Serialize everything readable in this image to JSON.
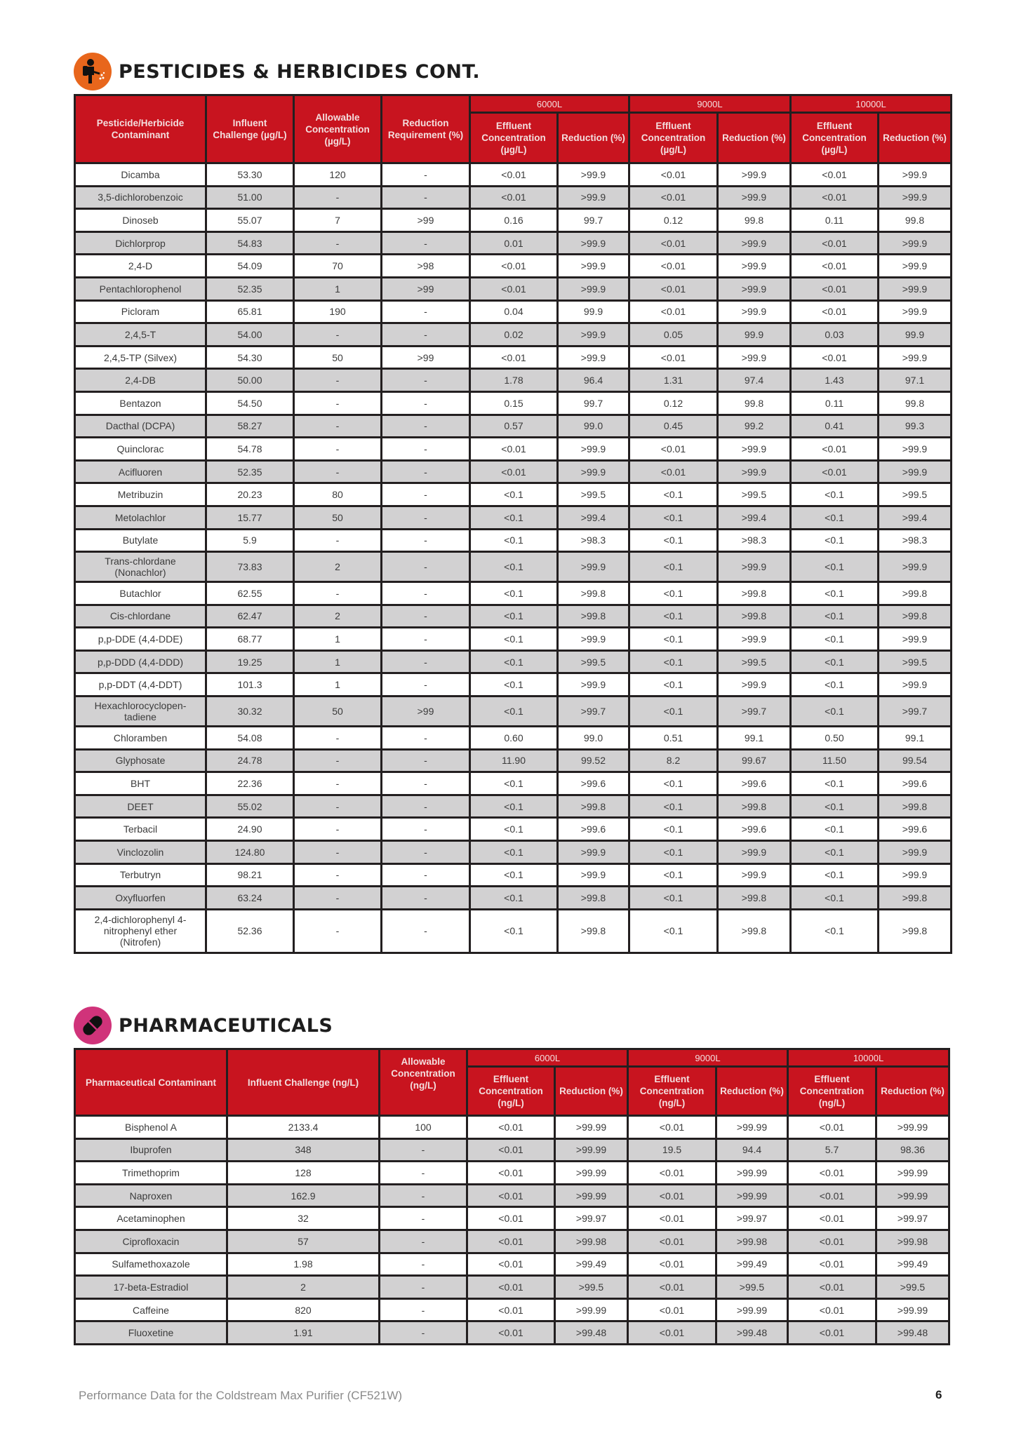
{
  "pesticides": {
    "title": "PESTICIDES & HERBICIDES CONT.",
    "icon": "sprayer-person-icon",
    "icon_color": "#e8661c",
    "header_color": "#c8141f",
    "headers": {
      "contaminant": "Pesticide/Herbicide Contaminant",
      "influent": "Influent Challenge (µg/L)",
      "allowable": "Allowable Concentration (µg/L)",
      "requirement": "Reduction Requirement (%)",
      "groups": [
        "6000L",
        "9000L",
        "10000L"
      ],
      "effluent": "Effluent Concentration (µg/L)",
      "reduction": "Reduction (%)"
    },
    "rows": [
      [
        "Dicamba",
        "53.30",
        "120",
        "-",
        "<0.01",
        ">99.9",
        "<0.01",
        ">99.9",
        "<0.01",
        ">99.9"
      ],
      [
        "3,5-dichlorobenzoic",
        "51.00",
        "-",
        "-",
        "<0.01",
        ">99.9",
        "<0.01",
        ">99.9",
        "<0.01",
        ">99.9"
      ],
      [
        "Dinoseb",
        "55.07",
        "7",
        ">99",
        "0.16",
        "99.7",
        "0.12",
        "99.8",
        "0.11",
        "99.8"
      ],
      [
        "Dichlorprop",
        "54.83",
        "-",
        "-",
        "0.01",
        ">99.9",
        "<0.01",
        ">99.9",
        "<0.01",
        ">99.9"
      ],
      [
        "2,4-D",
        "54.09",
        "70",
        ">98",
        "<0.01",
        ">99.9",
        "<0.01",
        ">99.9",
        "<0.01",
        ">99.9"
      ],
      [
        "Pentachlorophenol",
        "52.35",
        "1",
        ">99",
        "<0.01",
        ">99.9",
        "<0.01",
        ">99.9",
        "<0.01",
        ">99.9"
      ],
      [
        "Picloram",
        "65.81",
        "190",
        "-",
        "0.04",
        "99.9",
        "<0.01",
        ">99.9",
        "<0.01",
        ">99.9"
      ],
      [
        "2,4,5-T",
        "54.00",
        "-",
        "-",
        "0.02",
        ">99.9",
        "0.05",
        "99.9",
        "0.03",
        "99.9"
      ],
      [
        "2,4,5-TP (Silvex)",
        "54.30",
        "50",
        ">99",
        "<0.01",
        ">99.9",
        "<0.01",
        ">99.9",
        "<0.01",
        ">99.9"
      ],
      [
        "2,4-DB",
        "50.00",
        "-",
        "-",
        "1.78",
        "96.4",
        "1.31",
        "97.4",
        "1.43",
        "97.1"
      ],
      [
        "Bentazon",
        "54.50",
        "-",
        "-",
        "0.15",
        "99.7",
        "0.12",
        "99.8",
        "0.11",
        "99.8"
      ],
      [
        "Dacthal (DCPA)",
        "58.27",
        "-",
        "-",
        "0.57",
        "99.0",
        "0.45",
        "99.2",
        "0.41",
        "99.3"
      ],
      [
        "Quinclorac",
        "54.78",
        "-",
        "-",
        "<0.01",
        ">99.9",
        "<0.01",
        ">99.9",
        "<0.01",
        ">99.9"
      ],
      [
        "Acifluoren",
        "52.35",
        "-",
        "-",
        "<0.01",
        ">99.9",
        "<0.01",
        ">99.9",
        "<0.01",
        ">99.9"
      ],
      [
        "Metribuzin",
        "20.23",
        "80",
        "-",
        "<0.1",
        ">99.5",
        "<0.1",
        ">99.5",
        "<0.1",
        ">99.5"
      ],
      [
        "Metolachlor",
        "15.77",
        "50",
        "-",
        "<0.1",
        ">99.4",
        "<0.1",
        ">99.4",
        "<0.1",
        ">99.4"
      ],
      [
        "Butylate",
        "5.9",
        "-",
        "-",
        "<0.1",
        ">98.3",
        "<0.1",
        ">98.3",
        "<0.1",
        ">98.3"
      ],
      [
        "Trans-chlordane (Nonachlor)",
        "73.83",
        "2",
        "-",
        "<0.1",
        ">99.9",
        "<0.1",
        ">99.9",
        "<0.1",
        ">99.9"
      ],
      [
        "Butachlor",
        "62.55",
        "-",
        "-",
        "<0.1",
        ">99.8",
        "<0.1",
        ">99.8",
        "<0.1",
        ">99.8"
      ],
      [
        "Cis-chlordane",
        "62.47",
        "2",
        "-",
        "<0.1",
        ">99.8",
        "<0.1",
        ">99.8",
        "<0.1",
        ">99.8"
      ],
      [
        "p,p-DDE (4,4-DDE)",
        "68.77",
        "1",
        "-",
        "<0.1",
        ">99.9",
        "<0.1",
        ">99.9",
        "<0.1",
        ">99.9"
      ],
      [
        "p,p-DDD (4,4-DDD)",
        "19.25",
        "1",
        "-",
        "<0.1",
        ">99.5",
        "<0.1",
        ">99.5",
        "<0.1",
        ">99.5"
      ],
      [
        "p,p-DDT (4,4-DDT)",
        "101.3",
        "1",
        "-",
        "<0.1",
        ">99.9",
        "<0.1",
        ">99.9",
        "<0.1",
        ">99.9"
      ],
      [
        "Hexachlorocyclopen-tadiene",
        "30.32",
        "50",
        ">99",
        "<0.1",
        ">99.7",
        "<0.1",
        ">99.7",
        "<0.1",
        ">99.7"
      ],
      [
        "Chloramben",
        "54.08",
        "-",
        "-",
        "0.60",
        "99.0",
        "0.51",
        "99.1",
        "0.50",
        "99.1"
      ],
      [
        "Glyphosate",
        "24.78",
        "-",
        "-",
        "11.90",
        "99.52",
        "8.2",
        "99.67",
        "11.50",
        "99.54"
      ],
      [
        "BHT",
        "22.36",
        "-",
        "-",
        "<0.1",
        ">99.6",
        "<0.1",
        ">99.6",
        "<0.1",
        ">99.6"
      ],
      [
        "DEET",
        "55.02",
        "-",
        "-",
        "<0.1",
        ">99.8",
        "<0.1",
        ">99.8",
        "<0.1",
        ">99.8"
      ],
      [
        "Terbacil",
        "24.90",
        "-",
        "-",
        "<0.1",
        ">99.6",
        "<0.1",
        ">99.6",
        "<0.1",
        ">99.6"
      ],
      [
        "Vinclozolin",
        "124.80",
        "-",
        "-",
        "<0.1",
        ">99.9",
        "<0.1",
        ">99.9",
        "<0.1",
        ">99.9"
      ],
      [
        "Terbutryn",
        "98.21",
        "-",
        "-",
        "<0.1",
        ">99.9",
        "<0.1",
        ">99.9",
        "<0.1",
        ">99.9"
      ],
      [
        "Oxyfluorfen",
        "63.24",
        "-",
        "-",
        "<0.1",
        ">99.8",
        "<0.1",
        ">99.8",
        "<0.1",
        ">99.8"
      ],
      [
        "2,4-dichlorophenyl 4-nitrophenyl ether (Nitrofen)",
        "52.36",
        "-",
        "-",
        "<0.1",
        ">99.8",
        "<0.1",
        ">99.8",
        "<0.1",
        ">99.8"
      ]
    ]
  },
  "pharmaceuticals": {
    "title": "PHARMACEUTICALS",
    "icon": "pill-icon",
    "icon_color": "#d0337a",
    "headers": {
      "contaminant": "Pharmaceutical Contaminant",
      "influent": "Influent Challenge (ng/L)",
      "allowable": "Allowable Concentration (ng/L)",
      "groups": [
        "6000L",
        "9000L",
        "10000L"
      ],
      "effluent": "Effluent Concentration (ng/L)",
      "reduction": "Reduction (%)"
    },
    "rows": [
      [
        "Bisphenol A",
        "2133.4",
        "100",
        "<0.01",
        ">99.99",
        "<0.01",
        ">99.99",
        "<0.01",
        ">99.99"
      ],
      [
        "Ibuprofen",
        "348",
        "-",
        "<0.01",
        ">99.99",
        "19.5",
        "94.4",
        "5.7",
        "98.36"
      ],
      [
        "Trimethoprim",
        "128",
        "-",
        "<0.01",
        ">99.99",
        "<0.01",
        ">99.99",
        "<0.01",
        ">99.99"
      ],
      [
        "Naproxen",
        "162.9",
        "-",
        "<0.01",
        ">99.99",
        "<0.01",
        ">99.99",
        "<0.01",
        ">99.99"
      ],
      [
        "Acetaminophen",
        "32",
        "-",
        "<0.01",
        ">99.97",
        "<0.01",
        ">99.97",
        "<0.01",
        ">99.97"
      ],
      [
        "Ciprofloxacin",
        "57",
        "-",
        "<0.01",
        ">99.98",
        "<0.01",
        ">99.98",
        "<0.01",
        ">99.98"
      ],
      [
        "Sulfamethoxazole",
        "1.98",
        "-",
        "<0.01",
        ">99.49",
        "<0.01",
        ">99.49",
        "<0.01",
        ">99.49"
      ],
      [
        "17-beta-Estradiol",
        "2",
        "-",
        "<0.01",
        ">99.5",
        "<0.01",
        ">99.5",
        "<0.01",
        ">99.5"
      ],
      [
        "Caffeine",
        "820",
        "-",
        "<0.01",
        ">99.99",
        "<0.01",
        ">99.99",
        "<0.01",
        ">99.99"
      ],
      [
        "Fluoxetine",
        "1.91",
        "-",
        "<0.01",
        ">99.48",
        "<0.01",
        ">99.48",
        "<0.01",
        ">99.48"
      ]
    ]
  },
  "footer": {
    "text": "Performance Data for the Coldstream Max Purifier (CF521W)",
    "page_number": "6"
  }
}
